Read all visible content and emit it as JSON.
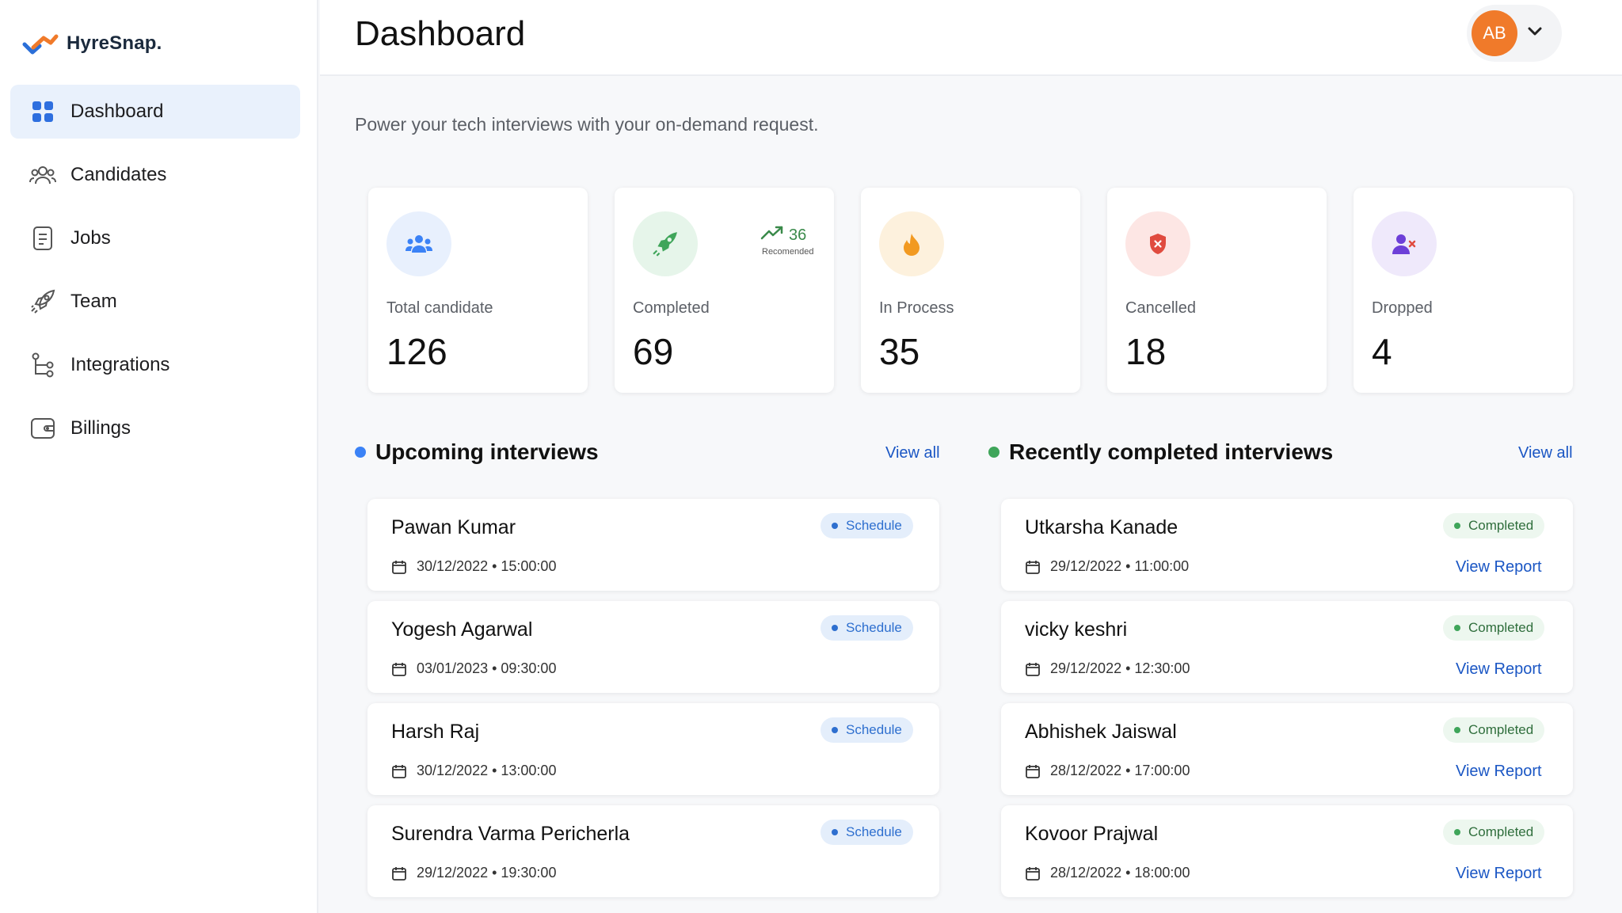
{
  "app": {
    "name": "HyreSnap."
  },
  "sidebar": {
    "items": [
      {
        "label": "Dashboard",
        "icon": "grid-icon",
        "active": true
      },
      {
        "label": "Candidates",
        "icon": "users-icon"
      },
      {
        "label": "Jobs",
        "icon": "document-icon"
      },
      {
        "label": "Team",
        "icon": "rocket-icon"
      },
      {
        "label": "Integrations",
        "icon": "branch-icon"
      },
      {
        "label": "Billings",
        "icon": "wallet-icon"
      }
    ]
  },
  "header": {
    "title": "Dashboard",
    "user_initials": "AB"
  },
  "main": {
    "subtitle": "Power your tech interviews with your on-demand request.",
    "stats": [
      {
        "label": "Total candidate",
        "value": "126",
        "icon": "users-icon",
        "color": "#3b82f6",
        "bg": "#e8f0fd"
      },
      {
        "label": "Completed",
        "value": "69",
        "icon": "rocket-icon",
        "color": "#3fa55a",
        "bg": "#e6f5ea",
        "trend_value": "36",
        "trend_label": "Recomended"
      },
      {
        "label": "In Process",
        "value": "35",
        "icon": "flame-icon",
        "color": "#f29a21",
        "bg": "#fdf1dd"
      },
      {
        "label": "Cancelled",
        "value": "18",
        "icon": "shield-x-icon",
        "color": "#e04b3f",
        "bg": "#fde6e4"
      },
      {
        "label": "Dropped",
        "value": "4",
        "icon": "user-x-icon",
        "color": "#6d3fd8",
        "bg": "#efe9fb"
      }
    ],
    "upcoming": {
      "title": "Upcoming interviews",
      "view_all": "View all",
      "dot_color": "#3b82f6",
      "items": [
        {
          "name": "Pawan Kumar",
          "date": "30/12/2022 • 15:00:00",
          "status": "Schedule"
        },
        {
          "name": "Yogesh Agarwal",
          "date": "03/01/2023 • 09:30:00",
          "status": "Schedule"
        },
        {
          "name": "Harsh Raj",
          "date": "30/12/2022 • 13:00:00",
          "status": "Schedule"
        },
        {
          "name": "Surendra Varma Pericherla",
          "date": "29/12/2022 • 19:30:00",
          "status": "Schedule"
        }
      ]
    },
    "completed": {
      "title": "Recently completed interviews",
      "view_all": "View all",
      "dot_color": "#3fa55a",
      "items": [
        {
          "name": "Utkarsha Kanade",
          "date": "29/12/2022 • 11:00:00",
          "status": "Completed",
          "link": "View Report"
        },
        {
          "name": "vicky keshri",
          "date": "29/12/2022 • 12:30:00",
          "status": "Completed",
          "link": "View Report"
        },
        {
          "name": "Abhishek Jaiswal",
          "date": "28/12/2022 • 17:00:00",
          "status": "Completed",
          "link": "View Report"
        },
        {
          "name": "Kovoor Prajwal",
          "date": "28/12/2022 • 18:00:00",
          "status": "Completed",
          "link": "View Report"
        }
      ]
    }
  }
}
